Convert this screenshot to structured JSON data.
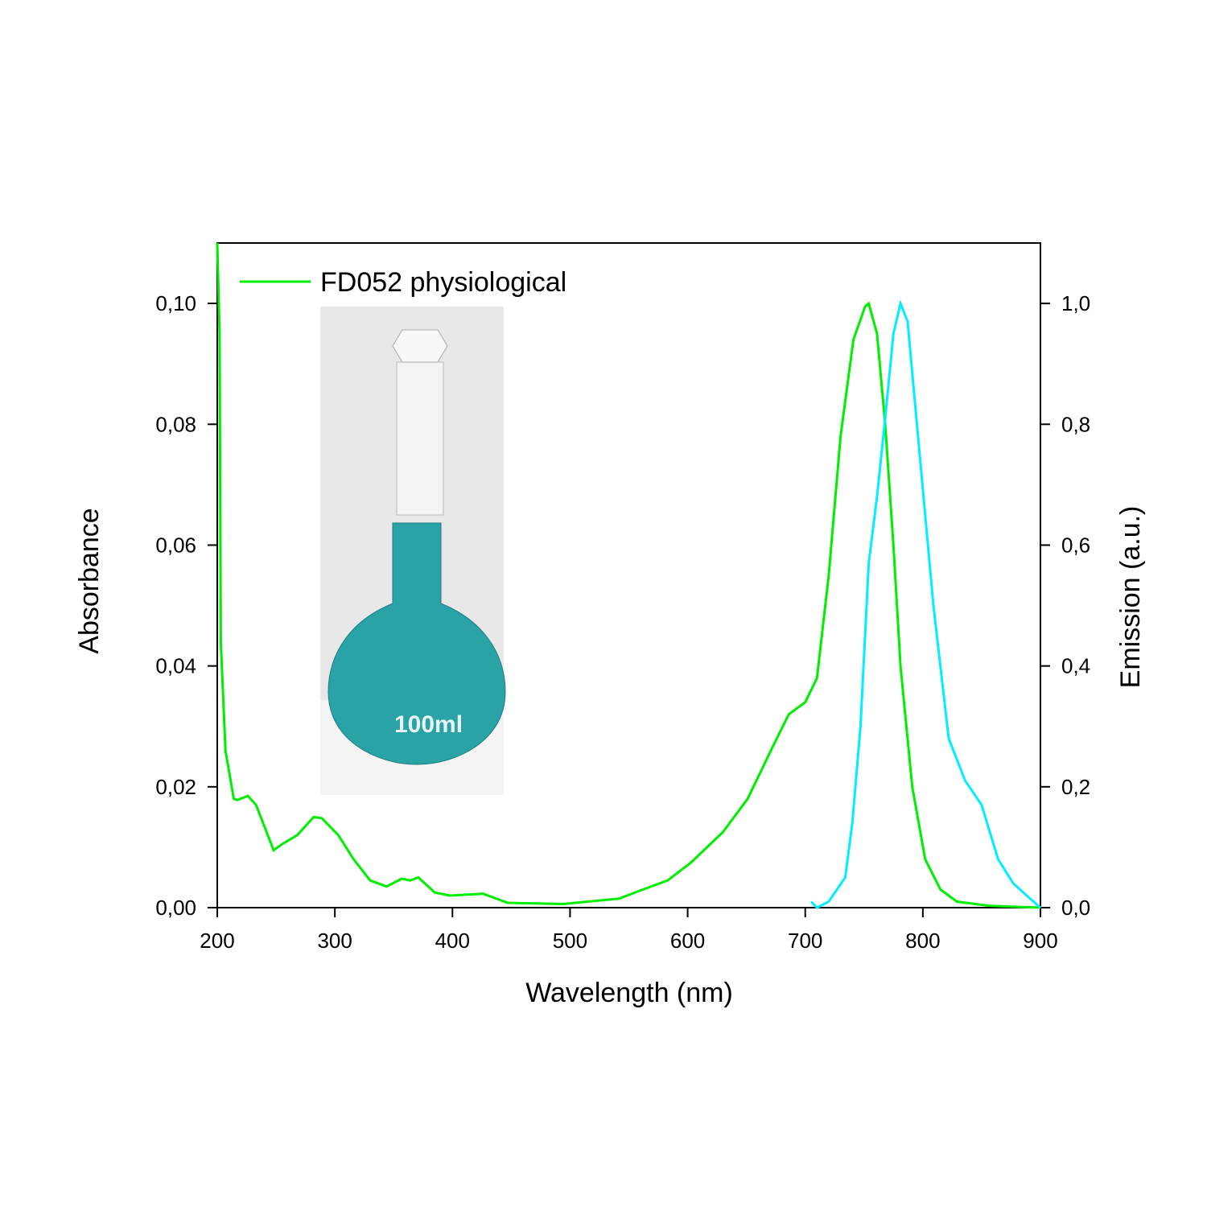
{
  "chart_data": {
    "type": "line",
    "x_label": "Wavelength (nm)",
    "y_label": "Absorbance",
    "y2_label": "Emission (a.u.)",
    "xlim": [
      200,
      900
    ],
    "xticks": [
      200,
      300,
      400,
      500,
      600,
      700,
      800,
      900
    ],
    "ylim": [
      0,
      0.11
    ],
    "yticks": [
      {
        "value": 0,
        "label": "0,00"
      },
      {
        "value": 0.02,
        "label": "0,02"
      },
      {
        "value": 0.04,
        "label": "0,04"
      },
      {
        "value": 0.06,
        "label": "0,06"
      },
      {
        "value": 0.08,
        "label": "0,08"
      },
      {
        "value": 0.1,
        "label": "0,10"
      }
    ],
    "y2lim": [
      0,
      1.1
    ],
    "y2ticks": [
      {
        "value": 0,
        "label": "0,0"
      },
      {
        "value": 0.2,
        "label": "0,2"
      },
      {
        "value": 0.4,
        "label": "0,4"
      },
      {
        "value": 0.6,
        "label": "0,6"
      },
      {
        "value": 0.8,
        "label": "0,8"
      },
      {
        "value": 1,
        "label": "1,0"
      }
    ],
    "legend": "upper left",
    "series": [
      {
        "name": "FD052 physiological",
        "color": "#00ee00",
        "x": [
          200,
          202,
          203,
          207,
          214,
          217,
          226,
          233,
          241,
          248,
          255,
          268,
          282,
          289,
          303,
          316,
          330,
          344,
          357,
          364,
          371,
          385,
          398,
          426,
          447,
          494,
          542,
          562,
          583,
          603,
          630,
          651,
          672,
          686,
          700,
          710,
          720,
          730,
          741,
          751,
          754,
          761,
          768,
          775,
          781,
          791,
          802,
          815,
          829,
          857,
          900
        ],
        "values": [
          0.11,
          0.095,
          0.044,
          0.026,
          0.018,
          0.0178,
          0.0185,
          0.017,
          0.013,
          0.0095,
          0.0105,
          0.012,
          0.015,
          0.0148,
          0.012,
          0.008,
          0.0045,
          0.0035,
          0.0048,
          0.0045,
          0.005,
          0.0025,
          0.002,
          0.0023,
          0.0008,
          0.0006,
          0.0015,
          0.003,
          0.0045,
          0.0075,
          0.0125,
          0.018,
          0.0265,
          0.032,
          0.034,
          0.038,
          0.055,
          0.078,
          0.094,
          0.0995,
          0.1,
          0.095,
          0.08,
          0.06,
          0.04,
          0.02,
          0.008,
          0.003,
          0.001,
          0.0003,
          0
        ]
      },
      {
        "color": "#00eeff",
        "axis": "y2",
        "x": [
          705,
          710,
          720,
          734,
          740,
          747,
          754,
          761,
          768,
          775,
          781,
          787,
          795,
          809,
          822,
          836,
          850,
          864,
          877,
          890,
          900
        ],
        "values": [
          0.01,
          0,
          0.01,
          0.05,
          0.14,
          0.3,
          0.57,
          0.68,
          0.81,
          0.95,
          1.0,
          0.97,
          0.8,
          0.5,
          0.28,
          0.21,
          0.17,
          0.08,
          0.04,
          0.017,
          0
        ]
      }
    ]
  }
}
